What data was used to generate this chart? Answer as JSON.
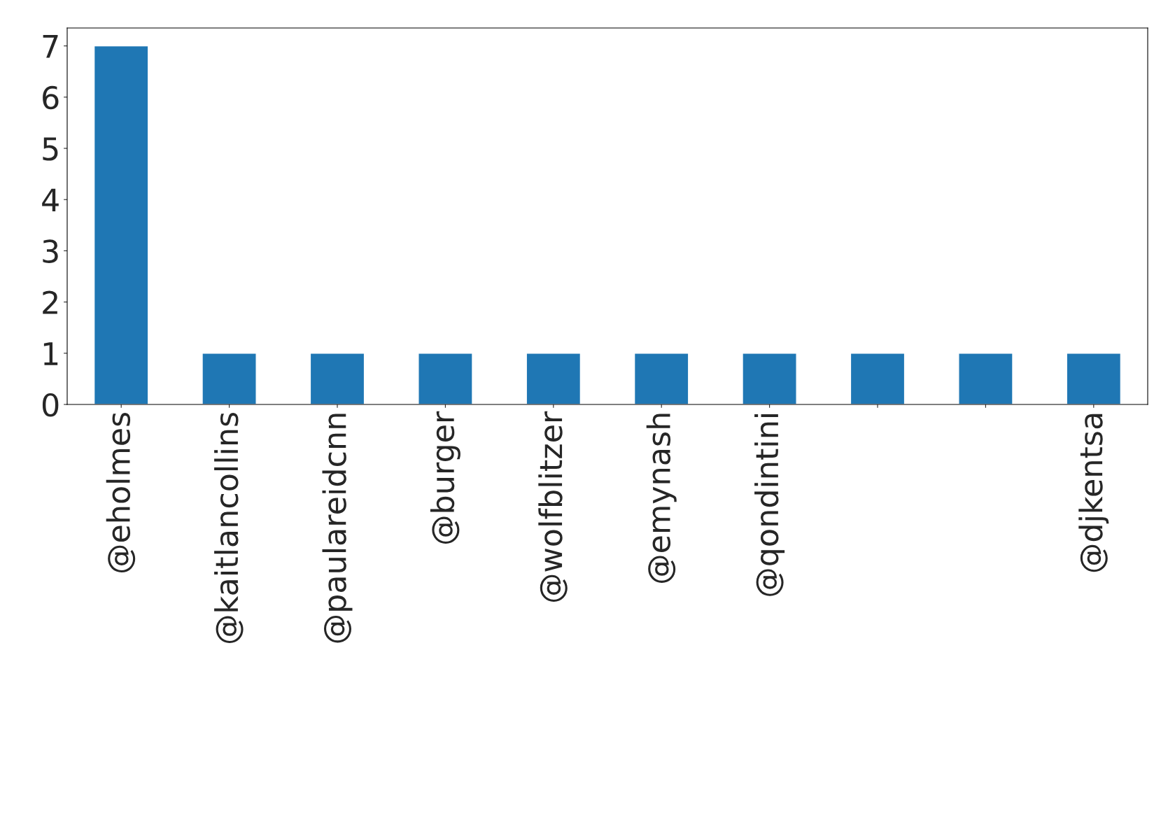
{
  "chart_data": {
    "type": "bar",
    "categories": [
      "@eholmes",
      "@kaitlancollins",
      "@paulareidcnn",
      "@burger",
      "@wolfblitzer",
      "@emynash",
      "@qondintini",
      null,
      null,
      "@djkentsa"
    ],
    "values": [
      7,
      1,
      1,
      1,
      1,
      1,
      1,
      1,
      1,
      1
    ],
    "color": "#1f77b4",
    "ylim": [
      0,
      7.35
    ],
    "yticks": [
      0,
      1,
      2,
      3,
      4,
      5,
      6,
      7
    ],
    "grid": false,
    "legend": false
  }
}
